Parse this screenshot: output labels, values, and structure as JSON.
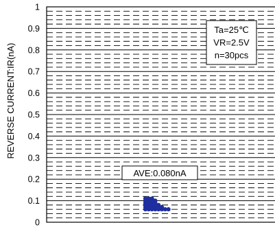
{
  "chart_data": {
    "type": "scatter",
    "title": "",
    "ylabel": "REVERSE CURRENT:IR(nA)",
    "xlabel": "",
    "ylim": [
      0,
      1
    ],
    "y_ticks": [
      "0",
      "0.1",
      "0.2",
      "0.3",
      "0.4",
      "0.5",
      "0.6",
      "0.7",
      "0.8",
      "0.9",
      "1"
    ],
    "major_step": 0.1,
    "minor_step": 0.02,
    "grid": true,
    "conditions": [
      "Ta=25℃",
      "VR=2.5V",
      "n=30pcs"
    ],
    "average_label": "AVE:0.080nA",
    "marker_color": "#1f2f9f",
    "points": [
      {
        "col": 0,
        "y": 0.06
      },
      {
        "col": 0,
        "y": 0.07
      },
      {
        "col": 0,
        "y": 0.08
      },
      {
        "col": 0,
        "y": 0.09
      },
      {
        "col": 0,
        "y": 0.1
      },
      {
        "col": 0,
        "y": 0.11
      },
      {
        "col": 1,
        "y": 0.06
      },
      {
        "col": 1,
        "y": 0.07
      },
      {
        "col": 1,
        "y": 0.08
      },
      {
        "col": 1,
        "y": 0.09
      },
      {
        "col": 1,
        "y": 0.1
      },
      {
        "col": 1,
        "y": 0.11
      },
      {
        "col": 2,
        "y": 0.06
      },
      {
        "col": 2,
        "y": 0.07
      },
      {
        "col": 2,
        "y": 0.08
      },
      {
        "col": 2,
        "y": 0.09
      },
      {
        "col": 2,
        "y": 0.1
      },
      {
        "col": 2,
        "y": 0.11
      },
      {
        "col": 3,
        "y": 0.06
      },
      {
        "col": 3,
        "y": 0.07
      },
      {
        "col": 3,
        "y": 0.08
      },
      {
        "col": 3,
        "y": 0.09
      },
      {
        "col": 3,
        "y": 0.1
      },
      {
        "col": 4,
        "y": 0.06
      },
      {
        "col": 4,
        "y": 0.07
      },
      {
        "col": 4,
        "y": 0.08
      },
      {
        "col": 5,
        "y": 0.06
      },
      {
        "col": 5,
        "y": 0.07
      },
      {
        "col": 6,
        "y": 0.06
      },
      {
        "col": 7,
        "y": 0.06
      }
    ]
  }
}
